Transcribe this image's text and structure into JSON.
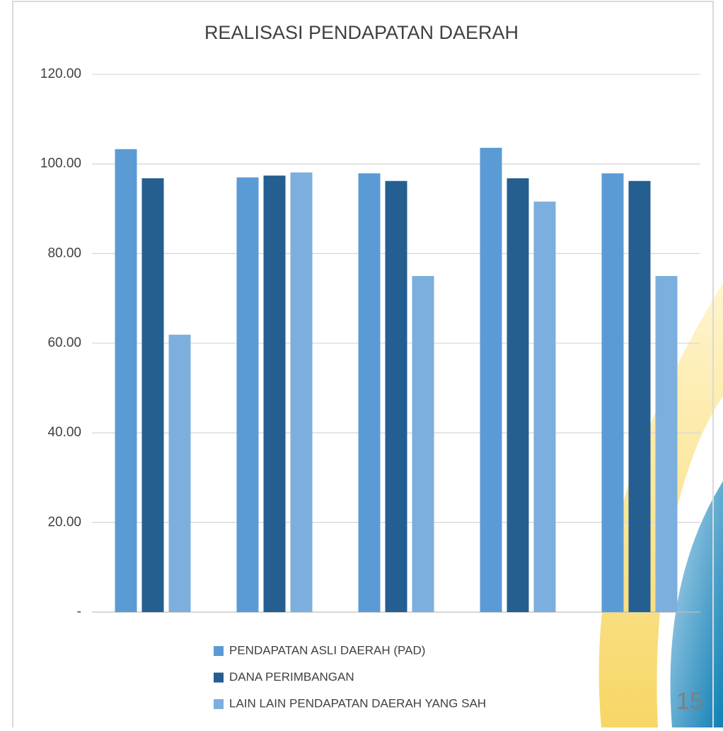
{
  "chart_data": {
    "type": "bar",
    "title": "REALISASI PENDAPATAN DAERAH",
    "categories": [
      null,
      null,
      null,
      null,
      null
    ],
    "series": [
      {
        "name": "PENDAPATAN ASLI DAERAH (PAD)",
        "color": "#5b9bd5",
        "values": [
          103.3,
          97.0,
          97.9,
          103.6,
          97.9
        ]
      },
      {
        "name": "DANA PERIMBANGAN",
        "color": "#255e91",
        "values": [
          96.8,
          97.4,
          96.2,
          96.8,
          96.2
        ]
      },
      {
        "name": "LAIN LAIN PENDAPATAN DAERAH YANG SAH",
        "color": "#7cafdd",
        "values": [
          61.9,
          98.1,
          75.0,
          91.6,
          75.0
        ]
      }
    ],
    "ylim": [
      0,
      120
    ],
    "yticks": [
      {
        "value": 0,
        "label": "-"
      },
      {
        "value": 20,
        "label": "20.00"
      },
      {
        "value": 40,
        "label": "40.00"
      },
      {
        "value": 60,
        "label": "60.00"
      },
      {
        "value": 80,
        "label": "80.00"
      },
      {
        "value": 100,
        "label": "100.00"
      },
      {
        "value": 120,
        "label": "120.00"
      }
    ],
    "grid": true,
    "legend": "bottom"
  },
  "page_number": "15"
}
